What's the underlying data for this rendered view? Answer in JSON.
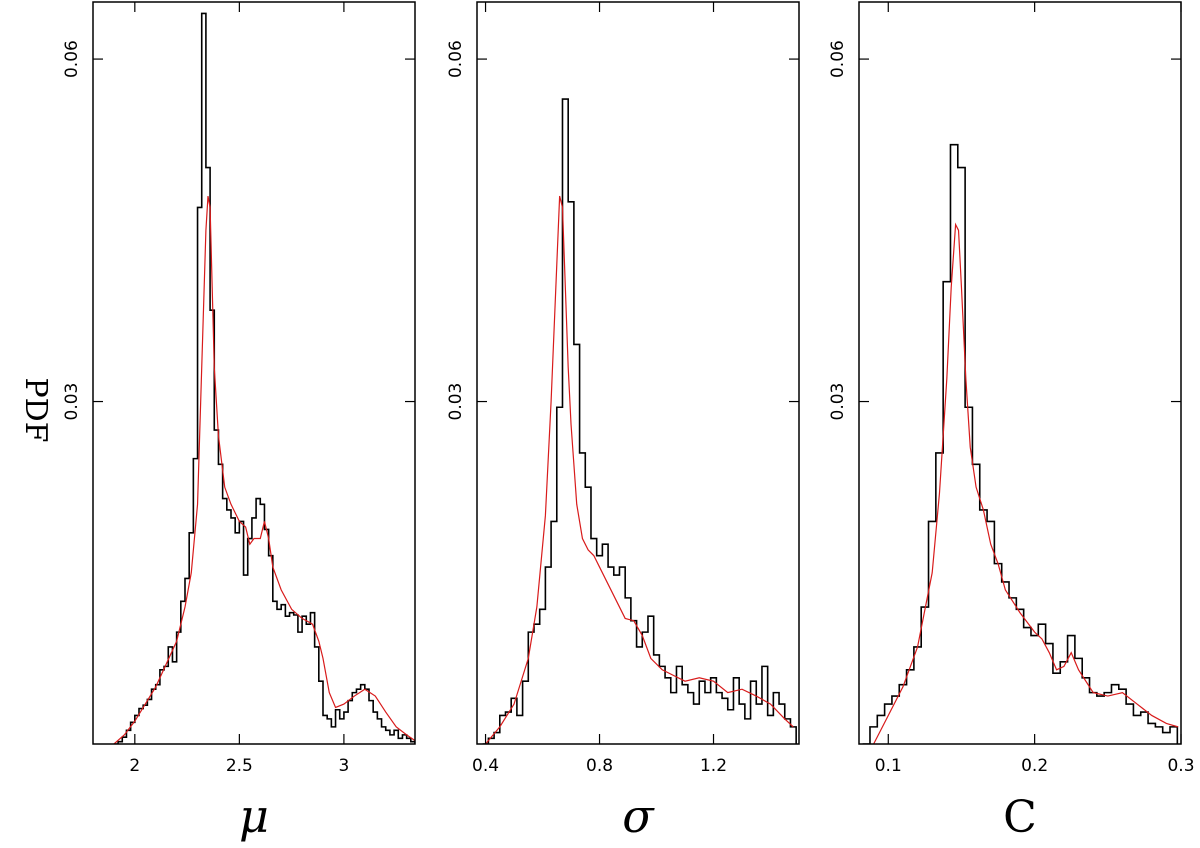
{
  "chart_data": [
    {
      "type": "histogram",
      "xlabel": "μ",
      "ylabel": "PDF",
      "xlim": [
        1.8,
        3.34
      ],
      "ylim": [
        0.0,
        0.065
      ],
      "xticks": [
        2,
        2.5,
        3
      ],
      "xtick_labels": [
        "2",
        "2.5",
        "3"
      ],
      "yticks": [
        0.03,
        0.06
      ],
      "ytick_labels": [
        "0.03",
        "0.06"
      ],
      "series": [
        {
          "style": "step",
          "color": "#000000",
          "x": [
            1.91,
            1.93,
            1.95,
            1.97,
            1.99,
            2.01,
            2.03,
            2.05,
            2.07,
            2.09,
            2.11,
            2.13,
            2.15,
            2.17,
            2.19,
            2.21,
            2.23,
            2.25,
            2.27,
            2.29,
            2.31,
            2.33,
            2.35,
            2.37,
            2.39,
            2.41,
            2.43,
            2.45,
            2.47,
            2.49,
            2.51,
            2.53,
            2.55,
            2.57,
            2.59,
            2.61,
            2.63,
            2.65,
            2.67,
            2.69,
            2.71,
            2.73,
            2.75,
            2.77,
            2.79,
            2.81,
            2.83,
            2.85,
            2.87,
            2.89,
            2.91,
            2.93,
            2.95,
            2.97,
            2.99,
            3.01,
            3.03,
            3.05,
            3.07,
            3.09,
            3.11,
            3.13,
            3.15,
            3.17,
            3.19,
            3.21,
            3.23,
            3.25,
            3.27,
            3.29,
            3.31,
            3.33
          ],
          "y": [
            0.0,
            0.0002,
            0.0006,
            0.0012,
            0.0019,
            0.0025,
            0.0031,
            0.0034,
            0.0039,
            0.0048,
            0.0052,
            0.0065,
            0.0068,
            0.0085,
            0.0072,
            0.0098,
            0.0125,
            0.0145,
            0.0185,
            0.025,
            0.047,
            0.064,
            0.0505,
            0.038,
            0.0275,
            0.0245,
            0.0215,
            0.0205,
            0.0198,
            0.0185,
            0.0195,
            0.0148,
            0.018,
            0.0198,
            0.0215,
            0.021,
            0.0188,
            0.0165,
            0.0125,
            0.0118,
            0.0122,
            0.0112,
            0.0115,
            0.0113,
            0.0098,
            0.0112,
            0.0105,
            0.0115,
            0.0085,
            0.0055,
            0.0025,
            0.0022,
            0.0015,
            0.003,
            0.0022,
            0.0028,
            0.0038,
            0.0045,
            0.0048,
            0.0052,
            0.0048,
            0.0038,
            0.0028,
            0.0022,
            0.0015,
            0.0012,
            0.0008,
            0.0012,
            0.0005,
            0.0008,
            0.0005,
            0.0002
          ]
        },
        {
          "style": "line",
          "color": "#d81b1b",
          "x": [
            1.9,
            1.95,
            2.0,
            2.05,
            2.1,
            2.15,
            2.2,
            2.24,
            2.27,
            2.3,
            2.32,
            2.34,
            2.35,
            2.36,
            2.37,
            2.38,
            2.4,
            2.43,
            2.46,
            2.5,
            2.53,
            2.55,
            2.57,
            2.6,
            2.62,
            2.64,
            2.66,
            2.7,
            2.75,
            2.8,
            2.85,
            2.88,
            2.9,
            2.93,
            2.96,
            3.0,
            3.05,
            3.1,
            3.15,
            3.2,
            3.25,
            3.3,
            3.34
          ],
          "y": [
            0.0,
            0.0008,
            0.002,
            0.0035,
            0.005,
            0.007,
            0.009,
            0.012,
            0.015,
            0.021,
            0.033,
            0.045,
            0.048,
            0.047,
            0.04,
            0.033,
            0.027,
            0.0225,
            0.021,
            0.0195,
            0.019,
            0.0175,
            0.018,
            0.018,
            0.0195,
            0.018,
            0.0155,
            0.0135,
            0.0118,
            0.011,
            0.0105,
            0.009,
            0.0075,
            0.0045,
            0.0032,
            0.0035,
            0.0042,
            0.0048,
            0.0042,
            0.0028,
            0.0015,
            0.0008,
            0.0003
          ]
        }
      ]
    },
    {
      "type": "histogram",
      "xlabel": "σ",
      "xlim": [
        0.37,
        1.5
      ],
      "ylim": [
        0.0,
        0.065
      ],
      "xticks": [
        0.4,
        0.8,
        1.2
      ],
      "xtick_labels": [
        "0.4",
        "0.8",
        "1.2"
      ],
      "yticks": [
        0.03,
        0.06
      ],
      "ytick_labels": [
        "0.03",
        "0.06"
      ],
      "series": [
        {
          "style": "step",
          "color": "#000000",
          "x": [
            0.4,
            0.42,
            0.44,
            0.46,
            0.48,
            0.5,
            0.52,
            0.54,
            0.56,
            0.58,
            0.6,
            0.62,
            0.64,
            0.66,
            0.68,
            0.7,
            0.72,
            0.74,
            0.76,
            0.78,
            0.8,
            0.82,
            0.84,
            0.86,
            0.88,
            0.9,
            0.92,
            0.94,
            0.96,
            0.98,
            1.0,
            1.02,
            1.04,
            1.06,
            1.08,
            1.1,
            1.12,
            1.14,
            1.16,
            1.18,
            1.2,
            1.22,
            1.24,
            1.26,
            1.28,
            1.3,
            1.32,
            1.34,
            1.36,
            1.38,
            1.4,
            1.42,
            1.44,
            1.46,
            1.48
          ],
          "y": [
            0.0,
            0.0005,
            0.001,
            0.0025,
            0.0028,
            0.004,
            0.0025,
            0.0055,
            0.0098,
            0.0105,
            0.0118,
            0.0155,
            0.0195,
            0.0295,
            0.0565,
            0.0475,
            0.035,
            0.0255,
            0.0225,
            0.018,
            0.0165,
            0.0175,
            0.0155,
            0.0148,
            0.0155,
            0.0128,
            0.0108,
            0.0085,
            0.0098,
            0.0112,
            0.0078,
            0.0068,
            0.0058,
            0.0045,
            0.0068,
            0.0052,
            0.0045,
            0.0035,
            0.0055,
            0.0045,
            0.0058,
            0.0045,
            0.004,
            0.003,
            0.0058,
            0.0035,
            0.0022,
            0.0055,
            0.0035,
            0.0068,
            0.0025,
            0.0045,
            0.0035,
            0.0022,
            0.0015
          ]
        },
        {
          "style": "line",
          "color": "#d81b1b",
          "x": [
            0.4,
            0.45,
            0.5,
            0.55,
            0.58,
            0.61,
            0.63,
            0.65,
            0.66,
            0.67,
            0.68,
            0.69,
            0.7,
            0.72,
            0.74,
            0.76,
            0.78,
            0.8,
            0.83,
            0.86,
            0.89,
            0.92,
            0.95,
            0.98,
            1.02,
            1.06,
            1.1,
            1.15,
            1.2,
            1.25,
            1.3,
            1.35,
            1.4,
            1.45,
            1.48
          ],
          "y": [
            0.0,
            0.0015,
            0.0035,
            0.0075,
            0.012,
            0.02,
            0.03,
            0.042,
            0.048,
            0.047,
            0.04,
            0.033,
            0.028,
            0.021,
            0.018,
            0.017,
            0.0165,
            0.0155,
            0.014,
            0.0125,
            0.011,
            0.0108,
            0.0095,
            0.0075,
            0.0065,
            0.006,
            0.0055,
            0.0058,
            0.0055,
            0.0045,
            0.0048,
            0.0042,
            0.0035,
            0.0022,
            0.0015
          ]
        }
      ]
    },
    {
      "type": "histogram",
      "xlabel": "C",
      "xlim": [
        0.08,
        0.3
      ],
      "ylim": [
        0.0,
        0.065
      ],
      "xticks": [
        0.1,
        0.2,
        0.3
      ],
      "xtick_labels": [
        "0.1",
        "0.2",
        "0.3"
      ],
      "yticks": [
        0.03,
        0.06
      ],
      "ytick_labels": [
        "0.03",
        "0.06"
      ],
      "series": [
        {
          "style": "step",
          "color": "#000000",
          "x": [
            0.085,
            0.09,
            0.095,
            0.1,
            0.105,
            0.11,
            0.115,
            0.12,
            0.125,
            0.13,
            0.135,
            0.14,
            0.145,
            0.15,
            0.155,
            0.16,
            0.165,
            0.17,
            0.175,
            0.18,
            0.185,
            0.19,
            0.195,
            0.2,
            0.205,
            0.21,
            0.215,
            0.22,
            0.225,
            0.23,
            0.235,
            0.24,
            0.245,
            0.25,
            0.255,
            0.26,
            0.265,
            0.27,
            0.275,
            0.28,
            0.285,
            0.29,
            0.295
          ],
          "y": [
            0.0,
            0.0015,
            0.0025,
            0.0035,
            0.0042,
            0.0052,
            0.0065,
            0.0085,
            0.012,
            0.0195,
            0.0255,
            0.0405,
            0.0525,
            0.0505,
            0.0295,
            0.0245,
            0.0205,
            0.0195,
            0.0158,
            0.0142,
            0.0128,
            0.0118,
            0.0102,
            0.0095,
            0.0105,
            0.0088,
            0.0062,
            0.0072,
            0.0095,
            0.0075,
            0.0058,
            0.0045,
            0.0042,
            0.0045,
            0.0052,
            0.0048,
            0.0035,
            0.0025,
            0.0028,
            0.0018,
            0.0015,
            0.001,
            0.0015
          ]
        },
        {
          "style": "line",
          "color": "#d81b1b",
          "x": [
            0.09,
            0.1,
            0.11,
            0.12,
            0.13,
            0.135,
            0.14,
            0.143,
            0.146,
            0.148,
            0.15,
            0.153,
            0.156,
            0.16,
            0.165,
            0.17,
            0.175,
            0.18,
            0.19,
            0.2,
            0.205,
            0.21,
            0.215,
            0.22,
            0.225,
            0.23,
            0.24,
            0.25,
            0.26,
            0.27,
            0.28,
            0.29,
            0.298
          ],
          "y": [
            0.0,
            0.0025,
            0.005,
            0.0085,
            0.015,
            0.022,
            0.032,
            0.04,
            0.0455,
            0.045,
            0.04,
            0.032,
            0.026,
            0.0225,
            0.0205,
            0.0175,
            0.0158,
            0.0135,
            0.0115,
            0.0098,
            0.0092,
            0.008,
            0.0065,
            0.0068,
            0.008,
            0.0065,
            0.0045,
            0.0042,
            0.0045,
            0.0035,
            0.0025,
            0.0018,
            0.0015
          ]
        }
      ]
    }
  ]
}
